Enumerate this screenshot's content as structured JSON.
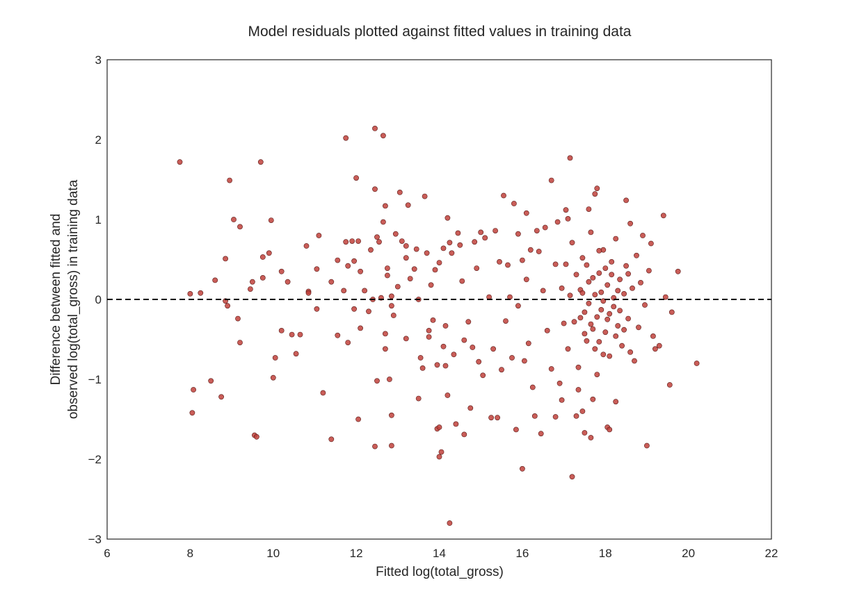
{
  "chart_data": {
    "type": "scatter",
    "title": "Model residuals plotted against fitted values in training data",
    "xlabel": "Fitted log(total_gross)",
    "ylabel": [
      "Difference between fitted and",
      "observed log(total_gross) in training data"
    ],
    "xlim": [
      6,
      22
    ],
    "ylim": [
      -3,
      3
    ],
    "xticks": [
      6,
      8,
      10,
      12,
      14,
      16,
      18,
      20,
      22
    ],
    "yticks": [
      -3,
      -2,
      -1,
      0,
      1,
      2,
      3
    ],
    "xtick_labels": [
      "6",
      "8",
      "10",
      "12",
      "14",
      "16",
      "18",
      "20",
      "22"
    ],
    "ytick_labels": [
      "−3",
      "−2",
      "−1",
      "0",
      "1",
      "2",
      "3"
    ],
    "grid": false,
    "reference_line": {
      "y": 0,
      "style": "dashed",
      "color": "#000000"
    },
    "marker_color": "#c0413b",
    "marker_edge_color": "#5a1a17",
    "points": [
      [
        7.75,
        1.72
      ],
      [
        8.0,
        0.07
      ],
      [
        8.08,
        -1.13
      ],
      [
        8.05,
        -1.42
      ],
      [
        8.25,
        0.08
      ],
      [
        8.5,
        -1.02
      ],
      [
        8.6,
        0.24
      ],
      [
        8.75,
        -1.22
      ],
      [
        8.85,
        0.51
      ],
      [
        8.85,
        -0.02
      ],
      [
        8.9,
        -0.08
      ],
      [
        8.95,
        1.49
      ],
      [
        9.05,
        1.0
      ],
      [
        9.15,
        -0.24
      ],
      [
        9.2,
        0.91
      ],
      [
        9.2,
        -0.54
      ],
      [
        9.45,
        0.13
      ],
      [
        9.5,
        0.22
      ],
      [
        9.55,
        -1.7
      ],
      [
        9.6,
        -1.72
      ],
      [
        9.7,
        1.72
      ],
      [
        9.75,
        0.53
      ],
      [
        9.75,
        0.27
      ],
      [
        9.9,
        0.58
      ],
      [
        9.95,
        0.99
      ],
      [
        10.0,
        -0.98
      ],
      [
        10.05,
        -0.73
      ],
      [
        10.2,
        0.35
      ],
      [
        10.2,
        -0.39
      ],
      [
        10.35,
        0.22
      ],
      [
        10.45,
        -0.44
      ],
      [
        10.55,
        -0.68
      ],
      [
        10.65,
        -0.44
      ],
      [
        10.8,
        0.67
      ],
      [
        10.85,
        0.1
      ],
      [
        10.85,
        0.08
      ],
      [
        11.05,
        0.38
      ],
      [
        11.1,
        0.8
      ],
      [
        11.05,
        -0.12
      ],
      [
        11.2,
        -1.17
      ],
      [
        11.4,
        0.22
      ],
      [
        11.4,
        -1.75
      ],
      [
        11.55,
        0.49
      ],
      [
        11.55,
        -0.45
      ],
      [
        11.7,
        0.11
      ],
      [
        11.75,
        0.72
      ],
      [
        11.75,
        2.02
      ],
      [
        11.8,
        0.42
      ],
      [
        11.8,
        -0.54
      ],
      [
        11.9,
        0.73
      ],
      [
        11.95,
        0.48
      ],
      [
        11.95,
        -0.12
      ],
      [
        12.0,
        1.52
      ],
      [
        12.05,
        -1.5
      ],
      [
        12.05,
        0.73
      ],
      [
        12.1,
        0.35
      ],
      [
        12.1,
        -0.36
      ],
      [
        12.2,
        0.11
      ],
      [
        12.3,
        -0.15
      ],
      [
        12.35,
        0.62
      ],
      [
        12.4,
        0.0
      ],
      [
        12.45,
        2.14
      ],
      [
        12.45,
        1.38
      ],
      [
        12.45,
        -1.84
      ],
      [
        12.5,
        0.78
      ],
      [
        12.5,
        -1.02
      ],
      [
        12.55,
        0.72
      ],
      [
        12.6,
        0.02
      ],
      [
        12.65,
        2.05
      ],
      [
        12.65,
        0.97
      ],
      [
        12.7,
        1.17
      ],
      [
        12.7,
        -0.43
      ],
      [
        12.7,
        -0.62
      ],
      [
        12.75,
        0.39
      ],
      [
        12.75,
        0.3
      ],
      [
        12.8,
        -1.0
      ],
      [
        12.85,
        0.04
      ],
      [
        12.85,
        -0.08
      ],
      [
        12.85,
        -1.83
      ],
      [
        12.85,
        -1.45
      ],
      [
        12.9,
        -0.2
      ],
      [
        12.95,
        0.82
      ],
      [
        13.0,
        0.16
      ],
      [
        13.05,
        1.34
      ],
      [
        13.1,
        0.73
      ],
      [
        13.2,
        0.67
      ],
      [
        13.2,
        0.52
      ],
      [
        13.2,
        -0.49
      ],
      [
        13.25,
        1.18
      ],
      [
        13.3,
        0.26
      ],
      [
        13.4,
        0.38
      ],
      [
        13.45,
        0.63
      ],
      [
        13.5,
        0.0
      ],
      [
        13.5,
        -1.24
      ],
      [
        13.55,
        -0.73
      ],
      [
        13.6,
        -0.86
      ],
      [
        13.65,
        1.29
      ],
      [
        13.7,
        0.58
      ],
      [
        13.75,
        -0.39
      ],
      [
        13.75,
        -0.47
      ],
      [
        13.8,
        0.18
      ],
      [
        13.85,
        -0.26
      ],
      [
        13.9,
        0.37
      ],
      [
        13.95,
        -0.82
      ],
      [
        13.95,
        -1.62
      ],
      [
        14.0,
        0.46
      ],
      [
        14.0,
        -1.6
      ],
      [
        14.05,
        -1.91
      ],
      [
        14.0,
        -1.97
      ],
      [
        14.1,
        0.64
      ],
      [
        14.1,
        -0.59
      ],
      [
        14.15,
        -0.33
      ],
      [
        14.15,
        -0.83
      ],
      [
        14.2,
        1.02
      ],
      [
        14.2,
        -1.2
      ],
      [
        14.25,
        0.71
      ],
      [
        14.25,
        -2.8
      ],
      [
        14.3,
        0.58
      ],
      [
        14.35,
        -0.69
      ],
      [
        14.4,
        -1.56
      ],
      [
        14.45,
        0.83
      ],
      [
        14.5,
        0.68
      ],
      [
        14.55,
        0.23
      ],
      [
        14.6,
        -1.69
      ],
      [
        14.6,
        -0.51
      ],
      [
        14.7,
        -0.28
      ],
      [
        14.75,
        -1.36
      ],
      [
        14.8,
        -0.6
      ],
      [
        14.85,
        0.72
      ],
      [
        14.9,
        0.39
      ],
      [
        14.95,
        -0.78
      ],
      [
        15.0,
        0.84
      ],
      [
        15.05,
        -0.95
      ],
      [
        15.1,
        0.77
      ],
      [
        15.2,
        0.03
      ],
      [
        15.25,
        -1.48
      ],
      [
        15.3,
        -0.62
      ],
      [
        15.35,
        0.86
      ],
      [
        15.4,
        -1.48
      ],
      [
        15.45,
        0.47
      ],
      [
        15.5,
        -0.88
      ],
      [
        15.55,
        1.3
      ],
      [
        15.6,
        -0.27
      ],
      [
        15.65,
        0.43
      ],
      [
        15.7,
        0.03
      ],
      [
        15.75,
        -0.73
      ],
      [
        15.8,
        1.2
      ],
      [
        15.85,
        -1.63
      ],
      [
        15.9,
        0.82
      ],
      [
        15.9,
        -0.08
      ],
      [
        16.0,
        0.49
      ],
      [
        16.05,
        -0.77
      ],
      [
        16.0,
        -2.12
      ],
      [
        16.1,
        1.08
      ],
      [
        16.1,
        0.25
      ],
      [
        16.15,
        -0.55
      ],
      [
        16.2,
        0.62
      ],
      [
        16.25,
        -1.1
      ],
      [
        16.3,
        -1.46
      ],
      [
        16.35,
        0.86
      ],
      [
        16.4,
        0.6
      ],
      [
        16.45,
        -1.68
      ],
      [
        16.5,
        0.11
      ],
      [
        16.55,
        0.9
      ],
      [
        16.6,
        -0.39
      ],
      [
        16.7,
        1.49
      ],
      [
        16.7,
        -0.87
      ],
      [
        16.8,
        0.44
      ],
      [
        16.8,
        -1.47
      ],
      [
        16.85,
        0.97
      ],
      [
        16.9,
        -1.05
      ],
      [
        16.95,
        -1.26
      ],
      [
        17.05,
        1.12
      ],
      [
        17.1,
        1.01
      ],
      [
        17.15,
        1.77
      ],
      [
        17.2,
        -2.22
      ],
      [
        17.3,
        -1.46
      ],
      [
        17.35,
        -1.13
      ],
      [
        17.45,
        -1.4
      ],
      [
        17.5,
        -1.67
      ],
      [
        17.6,
        1.13
      ],
      [
        17.65,
        -1.73
      ],
      [
        17.7,
        -1.25
      ],
      [
        17.75,
        1.32
      ],
      [
        17.8,
        1.39
      ],
      [
        18.05,
        -1.6
      ],
      [
        18.1,
        -1.63
      ],
      [
        18.25,
        -1.28
      ],
      [
        18.5,
        1.24
      ],
      [
        18.6,
        0.95
      ],
      [
        18.7,
        -0.77
      ],
      [
        18.9,
        0.8
      ],
      [
        19.0,
        -1.83
      ],
      [
        19.1,
        0.7
      ],
      [
        19.2,
        -0.62
      ],
      [
        19.3,
        -0.58
      ],
      [
        19.4,
        1.05
      ],
      [
        19.45,
        0.03
      ],
      [
        19.55,
        -1.07
      ],
      [
        19.6,
        -0.16
      ],
      [
        19.75,
        0.35
      ],
      [
        20.2,
        -0.8
      ],
      [
        16.95,
        0.14
      ],
      [
        17.0,
        -0.3
      ],
      [
        17.05,
        0.44
      ],
      [
        17.1,
        -0.62
      ],
      [
        17.15,
        0.05
      ],
      [
        17.2,
        0.71
      ],
      [
        17.25,
        -0.28
      ],
      [
        17.3,
        0.31
      ],
      [
        17.35,
        -0.85
      ],
      [
        17.4,
        0.12
      ],
      [
        17.45,
        0.52
      ],
      [
        17.5,
        -0.16
      ],
      [
        17.55,
        -0.52
      ],
      [
        17.6,
        0.22
      ],
      [
        17.65,
        0.84
      ],
      [
        17.7,
        -0.37
      ],
      [
        17.75,
        0.06
      ],
      [
        17.8,
        -0.94
      ],
      [
        17.85,
        0.33
      ],
      [
        17.9,
        -0.13
      ],
      [
        17.95,
        0.62
      ],
      [
        18.0,
        -0.41
      ],
      [
        18.05,
        0.18
      ],
      [
        18.1,
        -0.71
      ],
      [
        18.15,
        0.47
      ],
      [
        18.2,
        -0.09
      ],
      [
        18.25,
        0.76
      ],
      [
        18.3,
        -0.33
      ],
      [
        18.35,
        0.25
      ],
      [
        18.4,
        -0.58
      ],
      [
        18.45,
        0.07
      ],
      [
        18.5,
        0.42
      ],
      [
        18.55,
        -0.24
      ],
      [
        18.6,
        -0.66
      ],
      [
        18.65,
        0.14
      ],
      [
        18.75,
        0.55
      ],
      [
        18.8,
        -0.35
      ],
      [
        18.85,
        0.21
      ],
      [
        18.95,
        -0.07
      ],
      [
        19.05,
        0.36
      ],
      [
        19.15,
        -0.46
      ],
      [
        17.6,
        -0.05
      ],
      [
        17.7,
        0.27
      ],
      [
        17.8,
        -0.22
      ],
      [
        17.9,
        0.09
      ],
      [
        18.0,
        0.39
      ],
      [
        18.1,
        -0.18
      ],
      [
        18.2,
        0.02
      ],
      [
        17.55,
        0.43
      ],
      [
        17.65,
        -0.31
      ],
      [
        17.85,
        -0.53
      ],
      [
        17.95,
        -0.02
      ],
      [
        18.05,
        -0.25
      ],
      [
        18.15,
        0.31
      ],
      [
        18.25,
        -0.46
      ],
      [
        17.4,
        -0.23
      ],
      [
        17.45,
        0.08
      ],
      [
        17.5,
        -0.43
      ],
      [
        17.75,
        -0.62
      ],
      [
        17.85,
        0.61
      ],
      [
        17.95,
        -0.69
      ],
      [
        18.3,
        0.11
      ],
      [
        18.35,
        -0.14
      ],
      [
        18.45,
        -0.38
      ],
      [
        18.55,
        0.32
      ]
    ]
  }
}
